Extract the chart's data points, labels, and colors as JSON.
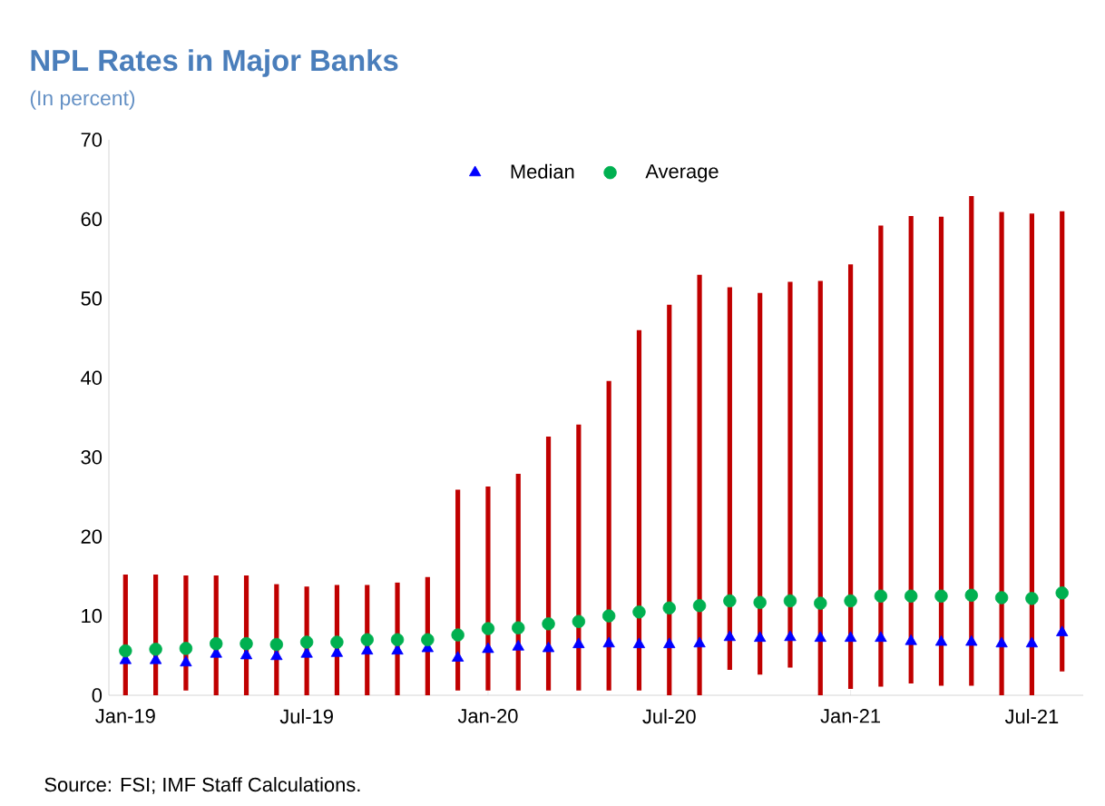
{
  "chart_data": {
    "type": "bar",
    "title": "NPL Rates in Major Banks",
    "subtitle": "(In percent)",
    "categories": [
      "Jan-19",
      null,
      null,
      null,
      null,
      null,
      "Jul-19",
      null,
      null,
      null,
      null,
      null,
      "Jan-20",
      null,
      null,
      null,
      null,
      null,
      "Jul-20",
      null,
      null,
      null,
      null,
      null,
      "Jan-21",
      null,
      null,
      null,
      null,
      null,
      "Jul-21",
      null
    ],
    "series": [
      {
        "color": "#c00000",
        "base": [
          0,
          0,
          0.6,
          0,
          0,
          0,
          0,
          0,
          0,
          0,
          0,
          0.6,
          0.6,
          0.6,
          0.6,
          0.6,
          0.6,
          0.6,
          0,
          0,
          3.2,
          2.6,
          3.5,
          0,
          0.8,
          1.1,
          1.5,
          1.2,
          1.2,
          0,
          0,
          3.0
        ],
        "values": [
          15.2,
          15.2,
          14.5,
          15.1,
          15.1,
          14.0,
          13.7,
          13.9,
          13.9,
          14.2,
          14.9,
          25.3,
          25.7,
          27.3,
          32.0,
          33.5,
          39.0,
          45.4,
          49.2,
          53.0,
          48.2,
          48.1,
          48.6,
          52.2,
          53.5,
          58.1,
          58.9,
          59.1,
          61.7,
          60.9,
          60.7,
          58.0
        ]
      },
      {
        "name": "Median",
        "type": "scatter",
        "marker": "triangle",
        "color": "#0000ff",
        "values": [
          4.4,
          4.4,
          4.1,
          5.2,
          5.0,
          4.9,
          5.2,
          5.3,
          5.6,
          5.6,
          5.9,
          4.7,
          5.8,
          6.1,
          5.9,
          6.4,
          6.5,
          6.4,
          6.4,
          6.5,
          7.3,
          7.2,
          7.3,
          7.2,
          7.2,
          7.2,
          6.8,
          6.7,
          6.7,
          6.5,
          6.5,
          7.9
        ]
      },
      {
        "name": "Average",
        "type": "scatter",
        "marker": "circle",
        "color": "#00b050",
        "values": [
          5.6,
          5.8,
          5.9,
          6.5,
          6.5,
          6.4,
          6.7,
          6.7,
          7.0,
          7.0,
          7.0,
          7.6,
          8.4,
          8.5,
          9.0,
          9.3,
          10.0,
          10.5,
          11.0,
          11.3,
          11.9,
          11.7,
          11.9,
          11.6,
          11.9,
          12.5,
          12.5,
          12.5,
          12.6,
          12.3,
          12.2,
          12.9
        ]
      }
    ],
    "ylim": [
      0,
      70
    ],
    "yticks": [
      0,
      10,
      20,
      30,
      40,
      50,
      60,
      70
    ],
    "legend": "top",
    "annotations": [
      "Source: FSI; IMF Staff Calculations."
    ]
  }
}
